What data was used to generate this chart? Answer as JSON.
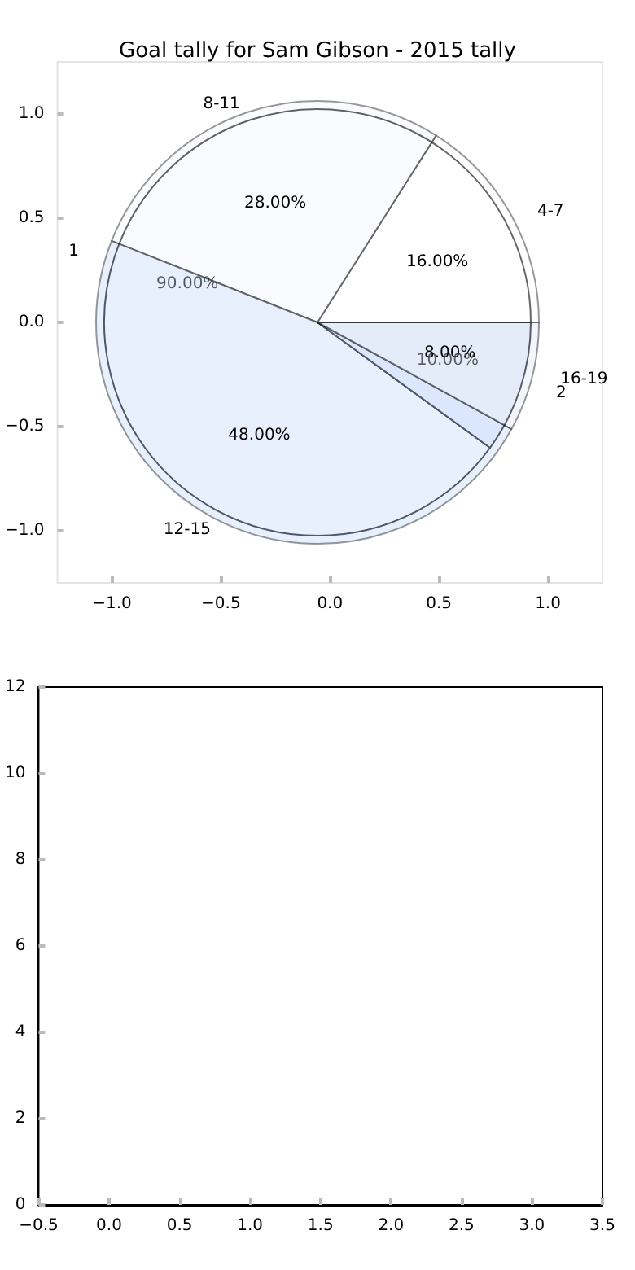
{
  "chart_data": [
    {
      "type": "pie",
      "title": "Goal tally for Sam Gibson - 2015 tally",
      "categories": [
        "4-7",
        "8-11",
        "12-15",
        "16-19"
      ],
      "values": [
        16,
        28,
        48,
        8
      ],
      "colors": [
        "#ffffff",
        "#f2f6fe",
        "#c6d9fc",
        "#dfe6f4"
      ],
      "value_labels": [
        "16.00%",
        "28.00%",
        "48.00%",
        "8.00%"
      ]
    },
    {
      "type": "pie",
      "categories": [
        "1",
        "2"
      ],
      "values": [
        90,
        10
      ],
      "colors": [
        "#ffffff",
        "#eaf0fc"
      ],
      "value_labels": [
        "90.00%",
        "10.00%"
      ]
    },
    {
      "type": "scatter",
      "xlim": [
        -1.25,
        1.25
      ],
      "ylim": [
        -1.25,
        1.25
      ],
      "xticks": [
        {
          "value": -1,
          "label": "−1.0"
        },
        {
          "value": -0.5,
          "label": "−0.5"
        },
        {
          "value": 0,
          "label": "0.0"
        },
        {
          "value": 0.5,
          "label": "0.5"
        },
        {
          "value": 1,
          "label": "1.0"
        }
      ],
      "yticks": [
        {
          "value": -1,
          "label": "−1.0"
        },
        {
          "value": -0.5,
          "label": "−0.5"
        },
        {
          "value": 0,
          "label": "0.0"
        },
        {
          "value": 0.5,
          "label": "0.5"
        },
        {
          "value": 1,
          "label": "1.0"
        }
      ]
    },
    {
      "type": "scatter",
      "xlim": [
        -0.5,
        3.5
      ],
      "ylim": [
        0,
        12
      ],
      "xticks": [
        {
          "value": -0.5,
          "label": "−0.5"
        },
        {
          "value": 0,
          "label": "0.0"
        },
        {
          "value": 0.5,
          "label": "0.5"
        },
        {
          "value": 1,
          "label": "1.0"
        },
        {
          "value": 1.5,
          "label": "1.5"
        },
        {
          "value": 2,
          "label": "2.0"
        },
        {
          "value": 2.5,
          "label": "2.5"
        },
        {
          "value": 3,
          "label": "3.0"
        },
        {
          "value": 3.5,
          "label": "3.5"
        }
      ],
      "yticks": [
        0,
        2,
        4,
        6,
        8,
        10,
        12
      ]
    }
  ]
}
